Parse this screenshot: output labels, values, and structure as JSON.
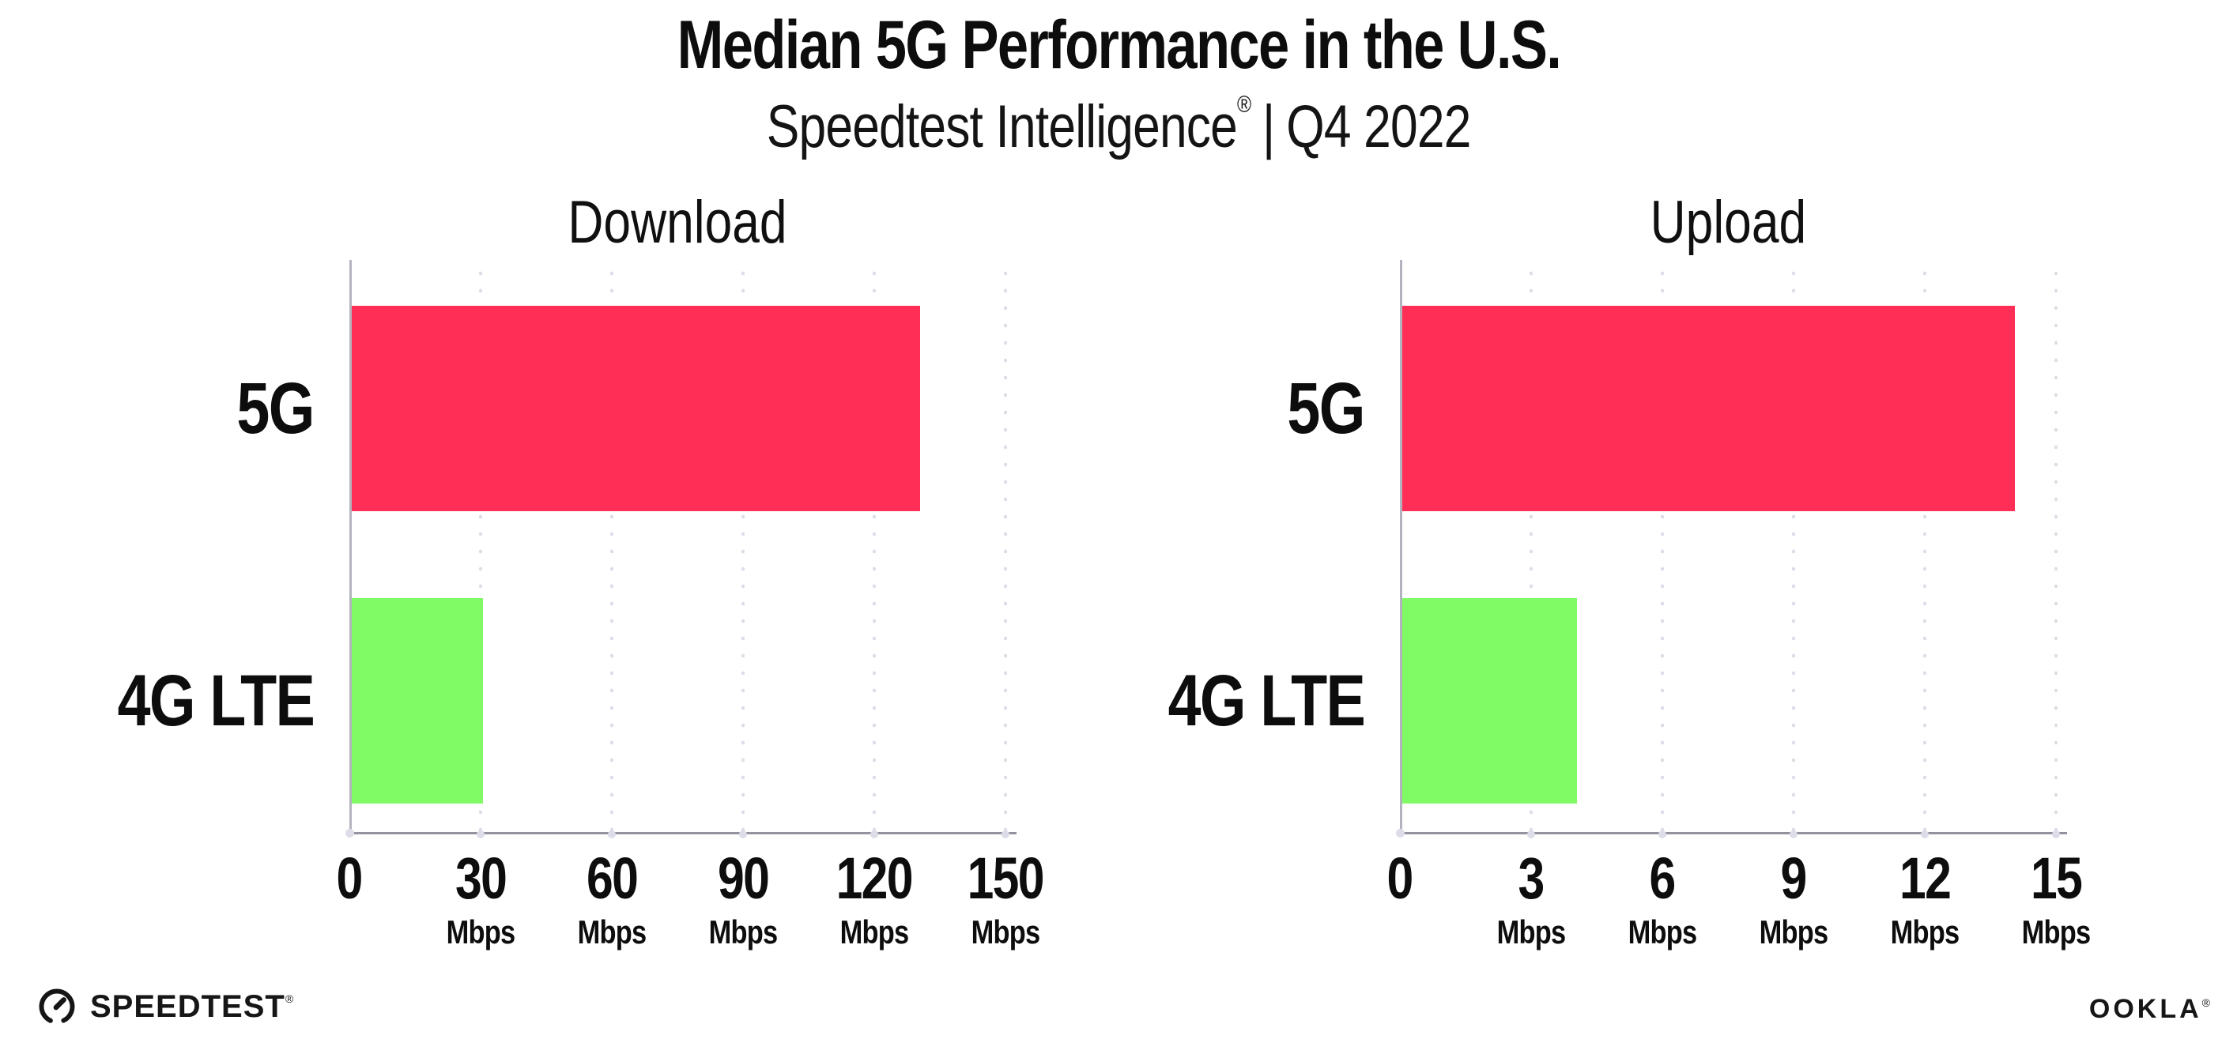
{
  "header": {
    "title": "Median 5G Performance in the U.S.",
    "subtitle_brand": "Speedtest Intelligence",
    "subtitle_reg": "®",
    "subtitle_separator": "|",
    "subtitle_period": "Q4 2022"
  },
  "chart_data": [
    {
      "type": "bar",
      "orientation": "horizontal",
      "title": "Download",
      "categories": [
        "5G",
        "4G LTE"
      ],
      "values": [
        130,
        30
      ],
      "unit": "Mbps",
      "xlim": [
        0,
        150
      ],
      "xticks": [
        0,
        30,
        60,
        90,
        120,
        150
      ],
      "grid": "dotted-vertical",
      "legend": "none"
    },
    {
      "type": "bar",
      "orientation": "horizontal",
      "title": "Upload",
      "categories": [
        "5G",
        "4G LTE"
      ],
      "values": [
        14,
        4
      ],
      "unit": "Mbps",
      "xlim": [
        0,
        15
      ],
      "xticks": [
        0,
        3,
        6,
        9,
        12,
        15
      ],
      "grid": "dotted-vertical",
      "legend": "none"
    }
  ],
  "colors": {
    "bar_5g": "#ff2e57",
    "bar_4g_lte": "#80fb66",
    "text": "#0d0d0d"
  },
  "footer": {
    "speedtest_wordmark": "SPEEDTEST",
    "speedtest_reg": "®",
    "ookla_wordmark": "OOKLA",
    "ookla_reg": "®"
  }
}
